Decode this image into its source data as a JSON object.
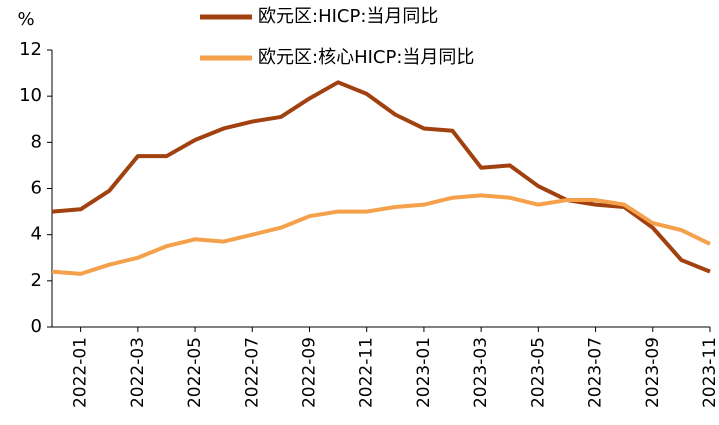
{
  "chart_data": {
    "type": "line",
    "y_label": "%",
    "categories": [
      null,
      "2022-01",
      null,
      "2022-03",
      null,
      "2022-05",
      null,
      "2022-07",
      null,
      "2022-09",
      null,
      "2022-11",
      null,
      "2023-01",
      null,
      "2023-03",
      null,
      "2023-05",
      null,
      "2023-07",
      null,
      "2023-09",
      null,
      "2023-11"
    ],
    "series": [
      {
        "name": "欧元区:HICP:当月同比",
        "color": "#a0410f",
        "values": [
          5.0,
          5.1,
          5.9,
          7.4,
          7.4,
          8.1,
          8.6,
          8.9,
          9.1,
          9.9,
          10.6,
          10.1,
          9.2,
          8.6,
          8.5,
          6.9,
          7.0,
          6.1,
          5.5,
          5.3,
          5.2,
          4.3,
          2.9,
          2.4
        ]
      },
      {
        "name": "欧元区:核心HICP:当月同比",
        "color": "#f5a04a",
        "values": [
          2.4,
          2.3,
          2.7,
          3.0,
          3.5,
          3.8,
          3.7,
          4.0,
          4.3,
          4.8,
          5.0,
          5.0,
          5.2,
          5.3,
          5.6,
          5.7,
          5.6,
          5.3,
          5.5,
          5.5,
          5.3,
          4.5,
          4.2,
          3.6
        ]
      }
    ],
    "ylim": [
      0,
      12
    ],
    "yticks": [
      0,
      2,
      4,
      6,
      8,
      10,
      12
    ],
    "grid": false
  }
}
